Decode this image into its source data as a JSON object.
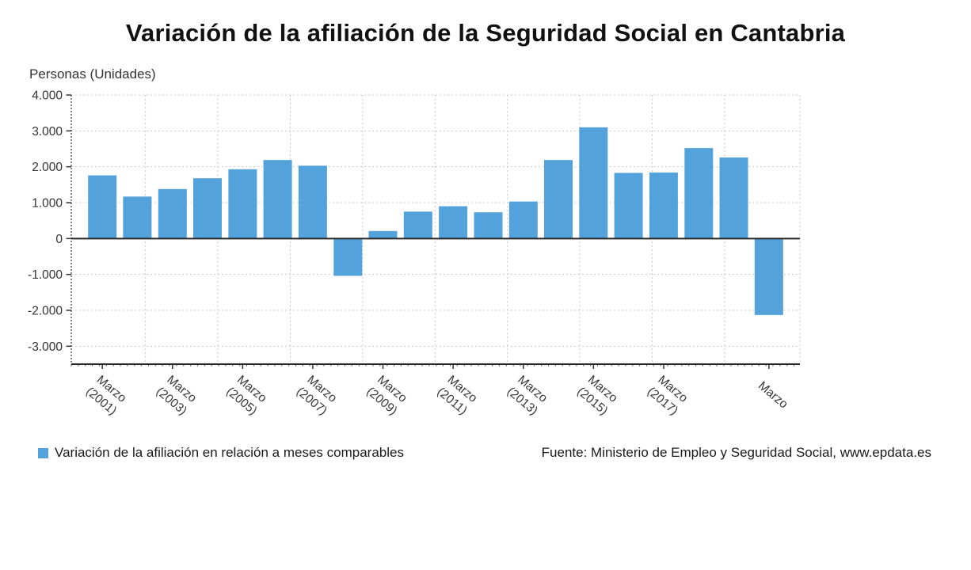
{
  "page": {
    "title": "Variación de la afiliación de la Seguridad Social en Cantabria",
    "y_axis_title": "Personas (Unidades)"
  },
  "legend": {
    "label": "Variación de la afiliación en relación a meses comparables",
    "marker_color": "#53a2db"
  },
  "source": {
    "text": "Fuente: Ministerio de Empleo y Seguridad Social, www.epdata.es"
  },
  "chart_data": {
    "type": "bar",
    "title": "Variación de la afiliación de la Seguridad Social en Cantabria",
    "xlabel": "",
    "ylabel": "Personas (Unidades)",
    "ylim": [
      -3500,
      4000
    ],
    "grid": true,
    "legend_position": "bottom-left",
    "bar_color": "#53a2db",
    "values": [
      1760,
      1170,
      1380,
      1680,
      1930,
      2190,
      2030,
      -1040,
      210,
      750,
      900,
      730,
      1030,
      2190,
      3100,
      1830,
      1840,
      2520,
      2260,
      -2130
    ],
    "y_ticks": [
      {
        "value": 4000,
        "label": "4.000"
      },
      {
        "value": 3000,
        "label": "3.000"
      },
      {
        "value": 2000,
        "label": "2.000"
      },
      {
        "value": 1000,
        "label": "1.000"
      },
      {
        "value": 0,
        "label": "0"
      },
      {
        "value": -1000,
        "label": "-1.000"
      },
      {
        "value": -2000,
        "label": "-2.000"
      },
      {
        "value": -3000,
        "label": "-3.000"
      }
    ],
    "x_ticks": [
      {
        "bar_index": 0,
        "line1": "Marzo",
        "line2": "(2001)"
      },
      {
        "bar_index": 2,
        "line1": "Marzo",
        "line2": "(2003)"
      },
      {
        "bar_index": 4,
        "line1": "Marzo",
        "line2": "(2005)"
      },
      {
        "bar_index": 6,
        "line1": "Marzo",
        "line2": "(2007)"
      },
      {
        "bar_index": 8,
        "line1": "Marzo",
        "line2": "(2009)"
      },
      {
        "bar_index": 10,
        "line1": "Marzo",
        "line2": "(2011)"
      },
      {
        "bar_index": 12,
        "line1": "Marzo",
        "line2": "(2013)"
      },
      {
        "bar_index": 14,
        "line1": "Marzo",
        "line2": "(2015)"
      },
      {
        "bar_index": 16,
        "line1": "Marzo",
        "line2": "(2017)"
      },
      {
        "bar_index": 19,
        "line1": "Marzo",
        "line2": ""
      }
    ]
  }
}
